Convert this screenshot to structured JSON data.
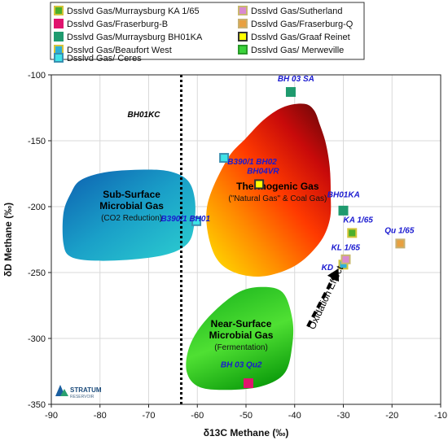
{
  "chart_data": {
    "type": "scatter",
    "xlabel": "δ13C Methane (‰)",
    "ylabel": "δD Methane (‰)",
    "xlim": [
      -90,
      -10
    ],
    "ylim": [
      -350,
      -100
    ],
    "xticks": [
      -90,
      -80,
      -70,
      -60,
      -50,
      -40,
      -30,
      -20,
      -10
    ],
    "yticks": [
      -100,
      -150,
      -200,
      -250,
      -300,
      -350
    ],
    "xtick_labels": [
      "-90",
      "-80",
      "-70",
      "-60",
      "-50",
      "-40",
      "-30",
      "-20",
      "-10"
    ],
    "ytick_labels": [
      "-100",
      "-150",
      "-200",
      "-250",
      "-300",
      "-350"
    ],
    "grid": true,
    "legend_placement": "top",
    "series": [
      {
        "name": "Dsslvd Gas/Murraysburg KA 1/65",
        "fill": "#4caf2a",
        "border": "#d4c43a",
        "points": [
          [
            -28.2,
            -220
          ]
        ]
      },
      {
        "name": "Dsslvd Gas/Fraserburg-B",
        "fill": "#e0136e",
        "border": "#e0136e",
        "points": [
          [
            -49.5,
            -334
          ]
        ]
      },
      {
        "name": "Dsslvd Gas/Murraysburg BH01KA",
        "fill": "#1f9a6e",
        "border": "#1f9a6e",
        "points": [
          [
            -40.8,
            -113
          ],
          [
            -30.0,
            -203
          ]
        ]
      },
      {
        "name": "Dsslvd Gas/Beaufort West",
        "fill": "#2fb0d8",
        "border": "#d4c43a",
        "points": [
          [
            -30.0,
            -244
          ]
        ]
      },
      {
        "name": "Dsslvd Gas/ Ceres",
        "fill": "#3fe3e8",
        "border": "#3a8fb0",
        "points": [
          [
            -54.5,
            -163
          ],
          [
            -60.2,
            -211
          ]
        ]
      },
      {
        "name": "Dsslvd Gas/Sutherland",
        "fill": "#d98ad0",
        "border": "#c9b870",
        "points": [
          [
            -29.5,
            -240
          ]
        ]
      },
      {
        "name": "Dsslvd Gas/Fraserburg-Q",
        "fill": "#e8a040",
        "border": "#c8b070",
        "points": [
          [
            -18.3,
            -228
          ]
        ]
      },
      {
        "name": "Dsslvd Gas/Graaf Reinet",
        "fill": "#ffff00",
        "border": "#333333",
        "points": [
          [
            -47.3,
            -183
          ]
        ]
      },
      {
        "name": "Dsslvd Gas/ Merweville",
        "fill": "#3ad33a",
        "border": "#2a9a2a",
        "points": []
      }
    ],
    "point_labels": [
      {
        "text": "BH 03 SA",
        "x": -43.5,
        "y": -105
      },
      {
        "text": "B390/1 BH02",
        "x": -53.8,
        "y": -168
      },
      {
        "text": "BH04VR",
        "x": -49.8,
        "y": -175
      },
      {
        "text": "B390/1 BH01",
        "x": -67.5,
        "y": -211
      },
      {
        "text": "BH01KA",
        "x": -33.3,
        "y": -193
      },
      {
        "text": "KA 1/65",
        "x": -30.0,
        "y": -212
      },
      {
        "text": "Qu 1/65",
        "x": -21.5,
        "y": -220
      },
      {
        "text": "KL 1/65",
        "x": -32.5,
        "y": -233
      },
      {
        "text": "KD",
        "x": -34.5,
        "y": -248
      },
      {
        "text": "BH 03 Qu2",
        "x": -55.2,
        "y": -322
      }
    ],
    "annotations": [
      {
        "text": "BH01KC",
        "x": -71,
        "y": -132
      },
      {
        "text": "Oxidation Effect",
        "x": -33.0,
        "y": -270,
        "rotation": -65
      }
    ],
    "regions": [
      {
        "name": "Thermogenic Gas",
        "title_lines": [
          "Thermogenic Gas"
        ],
        "subtitle_lines": [
          "(\"Natural Gas\" & Coal Gas)"
        ],
        "colors": [
          "#5a0808",
          "#c80a0a",
          "#ff3a00",
          "#ff8a00",
          "#ffd200"
        ],
        "label_x": -43.5,
        "label_y": -187,
        "polygon": [
          [
            -54,
            -165
          ],
          [
            -58,
            -200
          ],
          [
            -57,
            -232
          ],
          [
            -53.5,
            -248
          ],
          [
            -47,
            -253
          ],
          [
            -40,
            -245
          ],
          [
            -35,
            -228
          ],
          [
            -32.8,
            -210
          ],
          [
            -32.6,
            -190
          ],
          [
            -32.8,
            -170
          ],
          [
            -33.6,
            -152
          ],
          [
            -34.8,
            -138
          ],
          [
            -36,
            -127
          ],
          [
            -38,
            -122
          ],
          [
            -42,
            -124
          ],
          [
            -46,
            -133
          ],
          [
            -50,
            -148
          ]
        ]
      },
      {
        "name": "Sub-Surface Microbial Gas",
        "title_lines": [
          "Sub-Surface",
          "Microbial Gas"
        ],
        "subtitle_lines": [
          "(CO2 Reduction)"
        ],
        "colors": [
          "#0d5fb0",
          "#1aa0c8",
          "#2dd0d0"
        ],
        "label_x": -73.5,
        "label_y": -202,
        "polygon": [
          [
            -86,
            -190
          ],
          [
            -84,
            -180
          ],
          [
            -79,
            -174
          ],
          [
            -72,
            -172
          ],
          [
            -66,
            -173
          ],
          [
            -62,
            -180
          ],
          [
            -60.5,
            -195
          ],
          [
            -60.7,
            -215
          ],
          [
            -62,
            -228
          ],
          [
            -66,
            -236
          ],
          [
            -73,
            -240
          ],
          [
            -81,
            -241
          ],
          [
            -86,
            -238
          ],
          [
            -87.5,
            -228
          ],
          [
            -87.5,
            -205
          ]
        ]
      },
      {
        "name": "Near-Surface Microbial Gas",
        "title_lines": [
          "Near-Surface",
          "Microbial Gas"
        ],
        "subtitle_lines": [
          "(Fermentation)"
        ],
        "colors": [
          "#1fb81f",
          "#4fe033",
          "#0a9a0a"
        ],
        "label_x": -51,
        "label_y": -300,
        "polygon": [
          [
            -58,
            -285
          ],
          [
            -52,
            -266
          ],
          [
            -47,
            -261
          ],
          [
            -42.5,
            -265
          ],
          [
            -40.5,
            -285
          ],
          [
            -40.5,
            -305
          ],
          [
            -42,
            -326
          ],
          [
            -46.5,
            -336
          ],
          [
            -53,
            -339
          ],
          [
            -59.5,
            -337
          ],
          [
            -62.2,
            -325
          ],
          [
            -61.5,
            -305
          ]
        ]
      }
    ],
    "divider_x": -63.3,
    "arrow": {
      "from": [
        -37.3,
        -291
      ],
      "to": [
        -31.0,
        -247
      ]
    },
    "logo_text": "STRATUM",
    "logo_subtext": "RESERVOIR"
  }
}
